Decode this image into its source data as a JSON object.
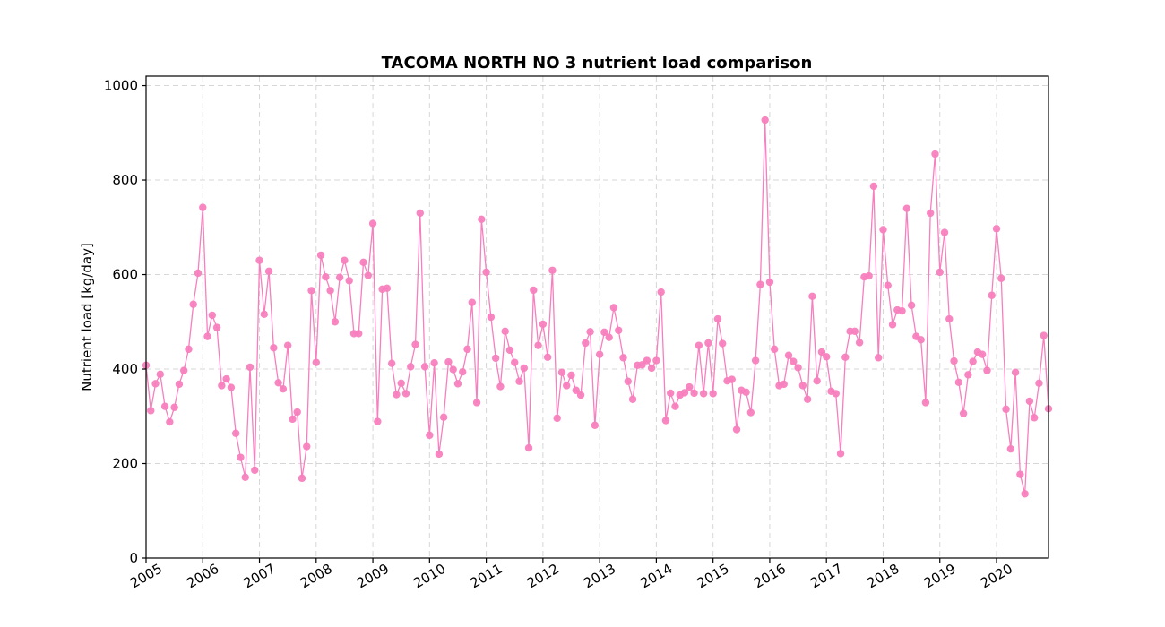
{
  "chart_data": {
    "type": "line",
    "title": "TACOMA NORTH NO 3 nutrient load comparison",
    "xlabel": "",
    "ylabel": "Nutrient load [kg/day]",
    "x_range": [
      "2005-01",
      "2020-12"
    ],
    "ylim": [
      0,
      1020
    ],
    "y_ticks": [
      0,
      200,
      400,
      600,
      800,
      1000
    ],
    "x_ticks": [
      "2005",
      "2006",
      "2007",
      "2008",
      "2009",
      "2010",
      "2011",
      "2012",
      "2013",
      "2014",
      "2015",
      "2016",
      "2017",
      "2018",
      "2019",
      "2020"
    ],
    "grid": true,
    "legend": "none",
    "series": [
      {
        "color": "#f77fbe",
        "marker": "circle",
        "start": "2005-01",
        "frequency": "monthly",
        "values": [
          408,
          312,
          369,
          389,
          321,
          288,
          319,
          368,
          397,
          442,
          537,
          603,
          742,
          469,
          514,
          488,
          365,
          379,
          361,
          264,
          213,
          171,
          404,
          186,
          630,
          516,
          607,
          445,
          371,
          358,
          450,
          294,
          309,
          169,
          236,
          566,
          414,
          641,
          595,
          566,
          500,
          594,
          630,
          587,
          475,
          475,
          626,
          598,
          708,
          289,
          569,
          571,
          412,
          346,
          370,
          348,
          405,
          452,
          730,
          405,
          260,
          413,
          220,
          298,
          415,
          399,
          369,
          394,
          442,
          541,
          329,
          717,
          605,
          510,
          423,
          363,
          480,
          440,
          414,
          374,
          402,
          233,
          567,
          450,
          495,
          425,
          609,
          296,
          393,
          365,
          387,
          355,
          345,
          455,
          479,
          281,
          431,
          478,
          467,
          530,
          482,
          424,
          374,
          336,
          408,
          409,
          418,
          402,
          418,
          563,
          291,
          349,
          321,
          345,
          350,
          362,
          349,
          450,
          348,
          455,
          348,
          506,
          454,
          375,
          378,
          272,
          355,
          351,
          308,
          418,
          579,
          927,
          584,
          442,
          365,
          368,
          429,
          416,
          403,
          365,
          336,
          554,
          375,
          436,
          426,
          353,
          348,
          221,
          425,
          480,
          480,
          456,
          595,
          597,
          787,
          424,
          695,
          577,
          494,
          525,
          523,
          740,
          535,
          469,
          462,
          329,
          730,
          855,
          605,
          689,
          506,
          417,
          372,
          306,
          388,
          416,
          436,
          431,
          397,
          556,
          697,
          592,
          315,
          231,
          393,
          177,
          136,
          332,
          297,
          370,
          471,
          316
        ]
      }
    ]
  }
}
